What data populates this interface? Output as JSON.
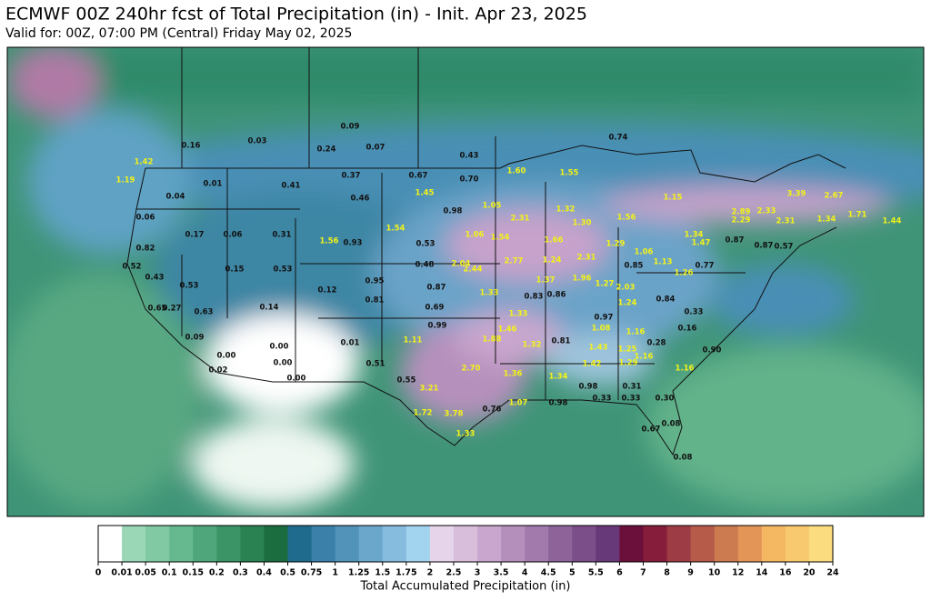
{
  "header": {
    "title": "ECMWF 00Z 240hr fcst of Total Precipitation (in) - Init. Apr 23, 2025",
    "subtitle": "Valid for: 00Z, 07:00 PM (Central) Friday May 02, 2025"
  },
  "map": {
    "groups": [
      {
        "color": "#111111",
        "values": [
          "0.16",
          "0.03",
          "0.09",
          "0.24",
          "0.07",
          "0.74",
          "0.43",
          "0.37",
          "0.67",
          "0.70",
          "0.41",
          "0.01",
          "0.04",
          "0.46",
          "0.98",
          "0.06",
          "0.17",
          "0.06",
          "0.31",
          "0.93",
          "0.53",
          "0.82",
          "0.52",
          "0.15",
          "0.53",
          "0.48",
          "0.43",
          "0.53",
          "0.12",
          "0.95",
          "0.81",
          "0.87",
          "0.83",
          "0.86",
          "0.85",
          "0.77",
          "0.87",
          "0.87",
          "0.57",
          "0.84",
          "0.69",
          "0.14",
          "0.27",
          "0.65",
          "0.63",
          "0.97",
          "0.33",
          "0.16",
          "0.99",
          "0.09",
          "0.00",
          "0.01",
          "0.81",
          "0.28",
          "0.90",
          "0.00",
          "0.00",
          "0.51",
          "0.02",
          "0.00",
          "0.55",
          "0.98",
          "0.31",
          "0.33",
          "0.33",
          "0.30",
          "0.76",
          "0.98",
          "0.67",
          "0.08",
          "0.08"
        ]
      },
      {
        "color": "#f2f21a",
        "values": [
          "1.42",
          "1.19",
          "1.60",
          "1.55",
          "1.45",
          "1.05",
          "2.31",
          "1.32",
          "1.30",
          "1.56",
          "1.15",
          "3.39",
          "2.67",
          "2.89",
          "2.33",
          "2.29",
          "2.31",
          "1.34",
          "1.71",
          "1.44",
          "1.56",
          "1.54",
          "1.06",
          "1.54",
          "1.66",
          "1.29",
          "1.06",
          "1.34",
          "1.47",
          "1.13",
          "1.26",
          "2.04",
          "2.77",
          "2.44",
          "1.24",
          "2.31",
          "1.37",
          "1.96",
          "1.27",
          "2.03",
          "1.24",
          "1.33",
          "1.33",
          "1.46",
          "1.08",
          "1.88",
          "1.11",
          "1.32",
          "1.16",
          "1.43",
          "1.25",
          "1.16",
          "2.70",
          "1.36",
          "1.34",
          "1.42",
          "1.29",
          "1.16",
          "3.21",
          "1.72",
          "3.78",
          "1.07",
          "1.33"
        ]
      }
    ]
  },
  "colorbar": {
    "title": "Total Accumulated Precipitation (in)",
    "ticks": [
      0,
      0.01,
      0.05,
      0.1,
      0.15,
      0.2,
      0.3,
      0.4,
      0.5,
      0.75,
      1,
      1.25,
      1.5,
      1.75,
      2,
      2.5,
      3,
      3.5,
      4,
      4.5,
      5,
      5.5,
      6,
      7,
      8,
      9,
      10,
      12,
      14,
      16,
      20,
      24
    ],
    "colors": [
      "#ffffff",
      "#9ad7b7",
      "#80c9a3",
      "#66b98e",
      "#4fa67a",
      "#3b9466",
      "#2a8152",
      "#1b6d40",
      "#1f6b8e",
      "#3a80a8",
      "#5293ba",
      "#6aa7cb",
      "#86bcdd",
      "#a3d4ef",
      "#e6d4ea",
      "#d9bedc",
      "#c9a6cd",
      "#b58fbb",
      "#a27aab",
      "#8e639a",
      "#7b4e8a",
      "#673978",
      "#6b0f3b",
      "#851d3b",
      "#9e3c45",
      "#b65a4a",
      "#cc7a50",
      "#e29557",
      "#f5b862",
      "#f8c96e",
      "#fbdd80",
      "#fdee92"
    ]
  }
}
